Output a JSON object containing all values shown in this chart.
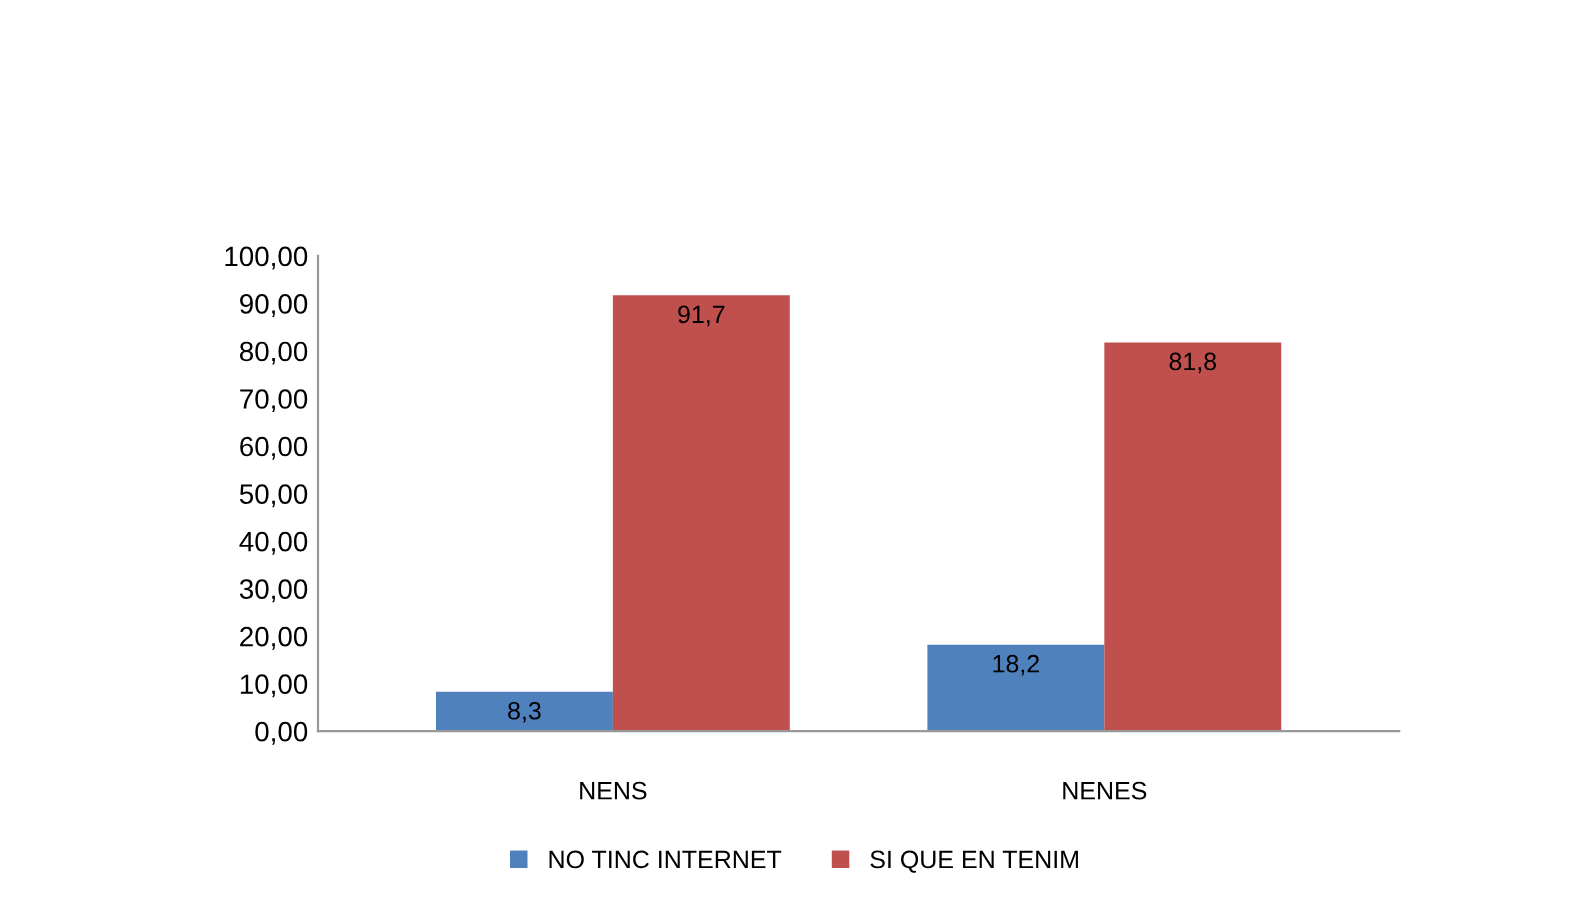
{
  "chart_data": {
    "type": "bar",
    "categories": [
      "NENS",
      "NENES"
    ],
    "series": [
      {
        "name": "NO TINC INTERNET",
        "color": "#4f81bd",
        "values": [
          8.3,
          18.2
        ],
        "value_labels": [
          "8,3",
          "18,2"
        ]
      },
      {
        "name": "SI QUE EN TENIM",
        "color": "#c0504d",
        "values": [
          91.7,
          81.8
        ],
        "value_labels": [
          "91,7",
          "81,8"
        ]
      }
    ],
    "ylim": [
      0,
      100
    ],
    "yticks": [
      {
        "value": 0,
        "label": "0,00"
      },
      {
        "value": 10,
        "label": "10,00"
      },
      {
        "value": 20,
        "label": "20,00"
      },
      {
        "value": 30,
        "label": "30,00"
      },
      {
        "value": 40,
        "label": "40,00"
      },
      {
        "value": 50,
        "label": "50,00"
      },
      {
        "value": 60,
        "label": "60,00"
      },
      {
        "value": 70,
        "label": "70,00"
      },
      {
        "value": 80,
        "label": "80,00"
      },
      {
        "value": 90,
        "label": "90,00"
      },
      {
        "value": 100,
        "label": "100,00"
      }
    ],
    "grid": false,
    "legend": "bottom"
  }
}
